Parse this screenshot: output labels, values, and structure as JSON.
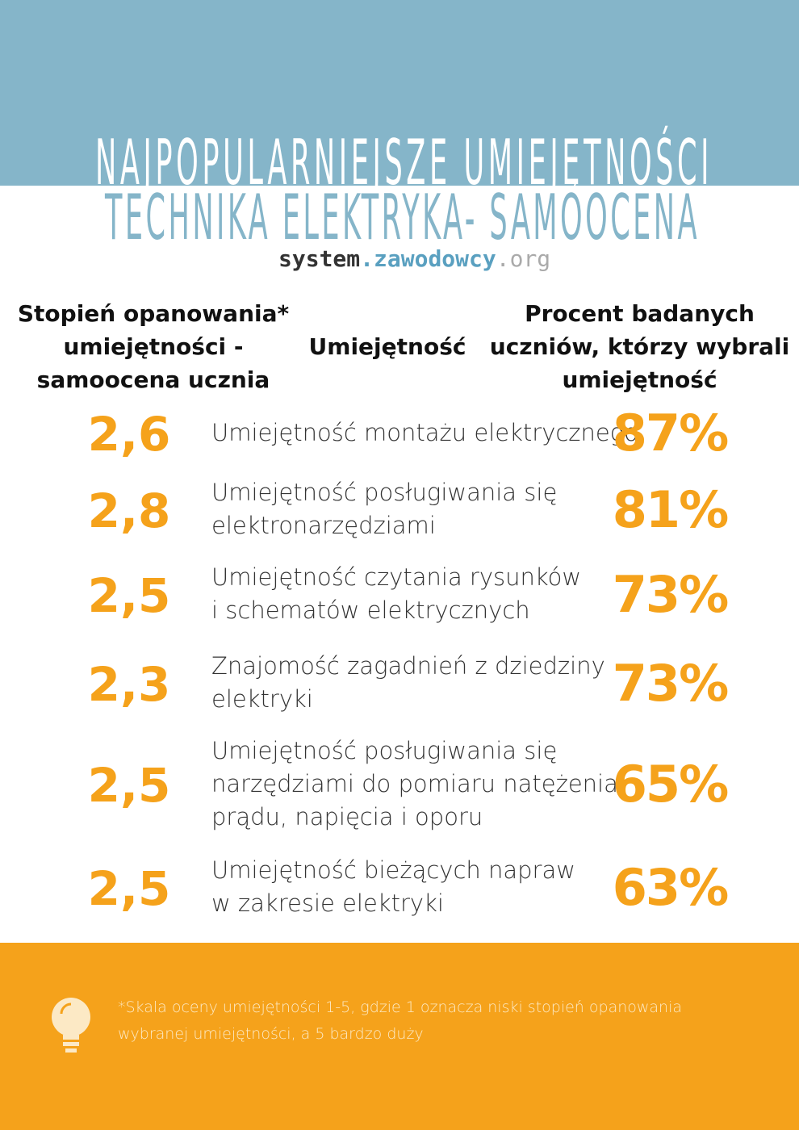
{
  "header": {
    "title_line1": "NAJPOPULARNIEJSZE UMIEJĘTNOŚCI",
    "title_line2": "TECHNIKA ELEKTRYKA- SAMOOCENA",
    "brand": [
      "system",
      ".zawodowcy",
      ".org"
    ]
  },
  "table": {
    "headers": [
      [
        "Stopień opanowania*",
        "umiejętności -",
        "samoocena ucznia"
      ],
      [
        "Umiejętność"
      ],
      [
        "Procent badanych",
        "uczniów, którzy wybrali",
        "umiejętność"
      ]
    ],
    "rows": [
      [
        "2,6",
        [
          "Umiejętność montażu elektrycznego"
        ],
        "87%"
      ],
      [
        "2,8",
        [
          "Umiejętność posługiwania się",
          "elektronarzędziami"
        ],
        "81%"
      ],
      [
        "2,5",
        [
          "Umiejętność czytania rysunków",
          "i schematów elektrycznych"
        ],
        "73%"
      ],
      [
        "2,3",
        [
          "Znajomość zagadnień z dziedziny",
          "elektryki"
        ],
        "73%"
      ],
      [
        "2,5",
        [
          "Umiejętność posługiwania się",
          "narzędziami do pomiaru natężenia",
          "prądu, napięcia i oporu"
        ],
        "65%"
      ],
      [
        "2,5",
        [
          "Umiejętność bieżących napraw",
          "w zakresie elektryki"
        ],
        "63%"
      ]
    ]
  },
  "footer": {
    "note": "*Skala oceny umiejętności 1-5, gdzie 1 oznacza niski stopień opanowania wybranej umiejętności, a 5 bardzo duży"
  }
}
